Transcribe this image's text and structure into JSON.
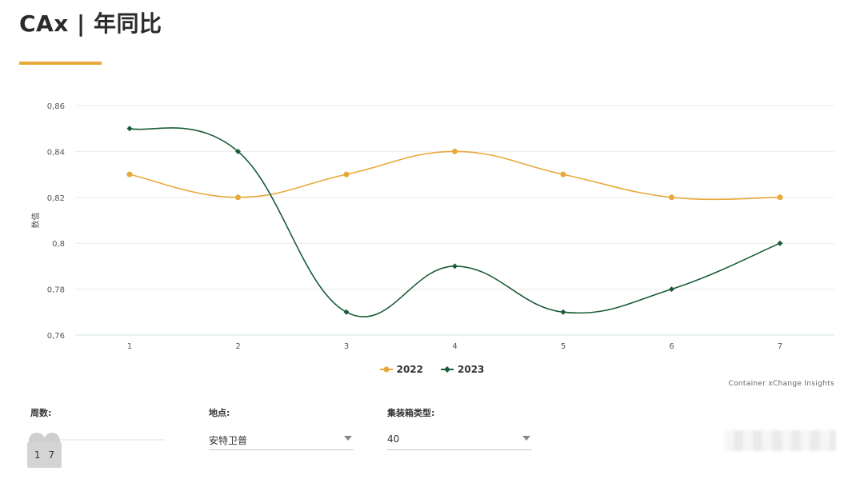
{
  "header": {
    "title": "CAx | 年同比"
  },
  "chart_data": {
    "type": "line",
    "x": [
      1,
      2,
      3,
      4,
      5,
      6,
      7
    ],
    "ylabel": "数值",
    "ylim": [
      0.76,
      0.86
    ],
    "y_ticks": [
      "0,76",
      "0,78",
      "0,8",
      "0,82",
      "0,84",
      "0,86"
    ],
    "y_tick_values": [
      0.76,
      0.78,
      0.8,
      0.82,
      0.84,
      0.86
    ],
    "x_ticks": [
      "1",
      "2",
      "3",
      "4",
      "5",
      "6",
      "7"
    ],
    "grid": true,
    "legend": "bottom",
    "series": [
      {
        "name": "2022",
        "values": [
          0.83,
          0.82,
          0.83,
          0.84,
          0.83,
          0.82,
          0.82
        ],
        "color": "#e8a93a",
        "marker": "circle"
      },
      {
        "name": "2023",
        "values": [
          0.85,
          0.84,
          0.77,
          0.79,
          0.77,
          0.78,
          0.8
        ],
        "color": "#1a5c36",
        "marker": "diamond"
      }
    ],
    "credits": "Container xChange Insights"
  },
  "filters": {
    "weeks": {
      "label": "周数:",
      "from": "1",
      "to": "7"
    },
    "location": {
      "label": "地点:",
      "value": "安特卫普"
    },
    "container_type": {
      "label": "集装箱类型:",
      "value": "40"
    }
  }
}
